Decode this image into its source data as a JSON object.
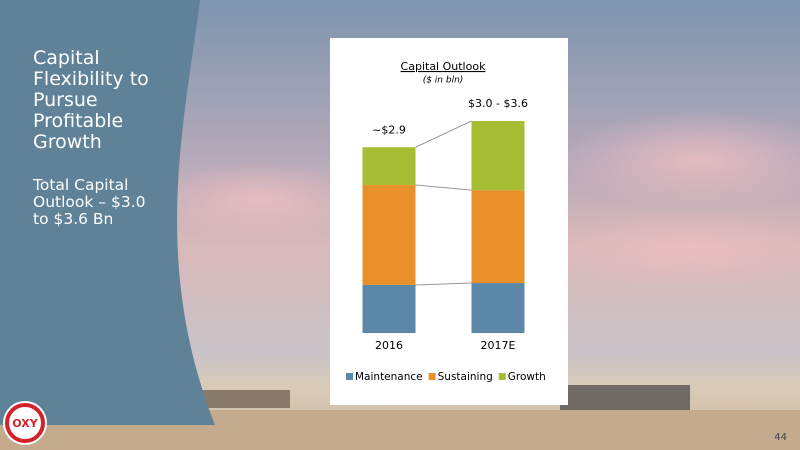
{
  "slide": {
    "headline": "Capital Flexibility to Pursue Profitable Growth",
    "subheadline": "Total Capital Outlook – $3.0 to $3.6 Bn",
    "logo": "OXY",
    "page_number": "44"
  },
  "chart_data": {
    "type": "stacked-bar",
    "title": "Capital Outlook",
    "subtitle": "($ in bln)",
    "categories": [
      "2016",
      "2017E"
    ],
    "series": [
      {
        "name": "Maintenance",
        "color": "#5b87a9",
        "values": [
          0.75,
          0.78
        ]
      },
      {
        "name": "Sustaining",
        "color": "#e8902a",
        "values": [
          1.56,
          1.45
        ]
      },
      {
        "name": "Growth",
        "color": "#a6bd34",
        "values": [
          0.59,
          1.08
        ]
      }
    ],
    "annotations": [
      "~$2.9",
      "$3.0 - $3.6"
    ],
    "legend": "bottom"
  }
}
